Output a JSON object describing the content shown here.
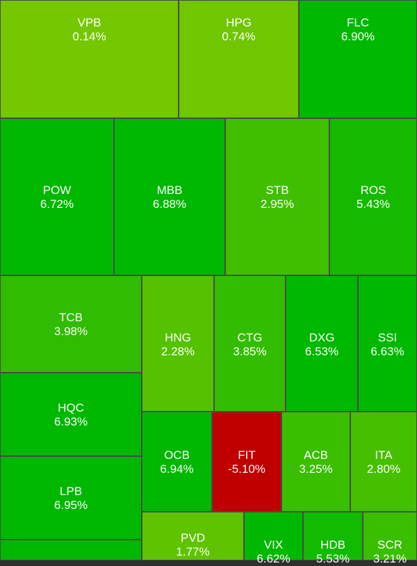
{
  "chart_data": {
    "type": "treemap",
    "title": "",
    "cells": [
      {
        "symbol": "VPB",
        "change": "0.14%",
        "value": 0.14,
        "color": "#75c700"
      },
      {
        "symbol": "HPG",
        "change": "0.74%",
        "value": 0.74,
        "color": "#70c600"
      },
      {
        "symbol": "FLC",
        "change": "6.90%",
        "value": 6.9,
        "color": "#00b800"
      },
      {
        "symbol": "POW",
        "change": "6.72%",
        "value": 6.72,
        "color": "#00b800"
      },
      {
        "symbol": "MBB",
        "change": "6.88%",
        "value": 6.88,
        "color": "#00b800"
      },
      {
        "symbol": "STB",
        "change": "2.95%",
        "value": 2.95,
        "color": "#3fbf00"
      },
      {
        "symbol": "ROS",
        "change": "5.43%",
        "value": 5.43,
        "color": "#15ba00"
      },
      {
        "symbol": "TCB",
        "change": "3.98%",
        "value": 3.98,
        "color": "#30bc00"
      },
      {
        "symbol": "HNG",
        "change": "2.28%",
        "value": 2.28,
        "color": "#55c200"
      },
      {
        "symbol": "CTG",
        "change": "3.85%",
        "value": 3.85,
        "color": "#33bd00"
      },
      {
        "symbol": "DXG",
        "change": "6.53%",
        "value": 6.53,
        "color": "#00b800"
      },
      {
        "symbol": "SSI",
        "change": "6.63%",
        "value": 6.63,
        "color": "#00b800"
      },
      {
        "symbol": "HQC",
        "change": "6.93%",
        "value": 6.93,
        "color": "#00b800"
      },
      {
        "symbol": "OCB",
        "change": "6.94%",
        "value": 6.94,
        "color": "#00b800"
      },
      {
        "symbol": "FIT",
        "change": "-5.10%",
        "value": -5.1,
        "color": "#c00000"
      },
      {
        "symbol": "ACB",
        "change": "3.25%",
        "value": 3.25,
        "color": "#3abe00"
      },
      {
        "symbol": "ITA",
        "change": "2.80%",
        "value": 2.8,
        "color": "#45c000"
      },
      {
        "symbol": "LPB",
        "change": "6.95%",
        "value": 6.95,
        "color": "#00b800"
      },
      {
        "symbol": "PVD",
        "change": "1.77%",
        "value": 1.77,
        "color": "#5ec400"
      },
      {
        "symbol": "VIX",
        "change": "6.62%",
        "value": 6.62,
        "color": "#00b800"
      },
      {
        "symbol": "HDB",
        "change": "5.53%",
        "value": 5.53,
        "color": "#12ba00"
      },
      {
        "symbol": "SCR",
        "change": "3.21%",
        "value": 3.21,
        "color": "#3abe00"
      },
      {
        "symbol": "",
        "change": "",
        "value": null,
        "color": "#00b800"
      }
    ]
  }
}
